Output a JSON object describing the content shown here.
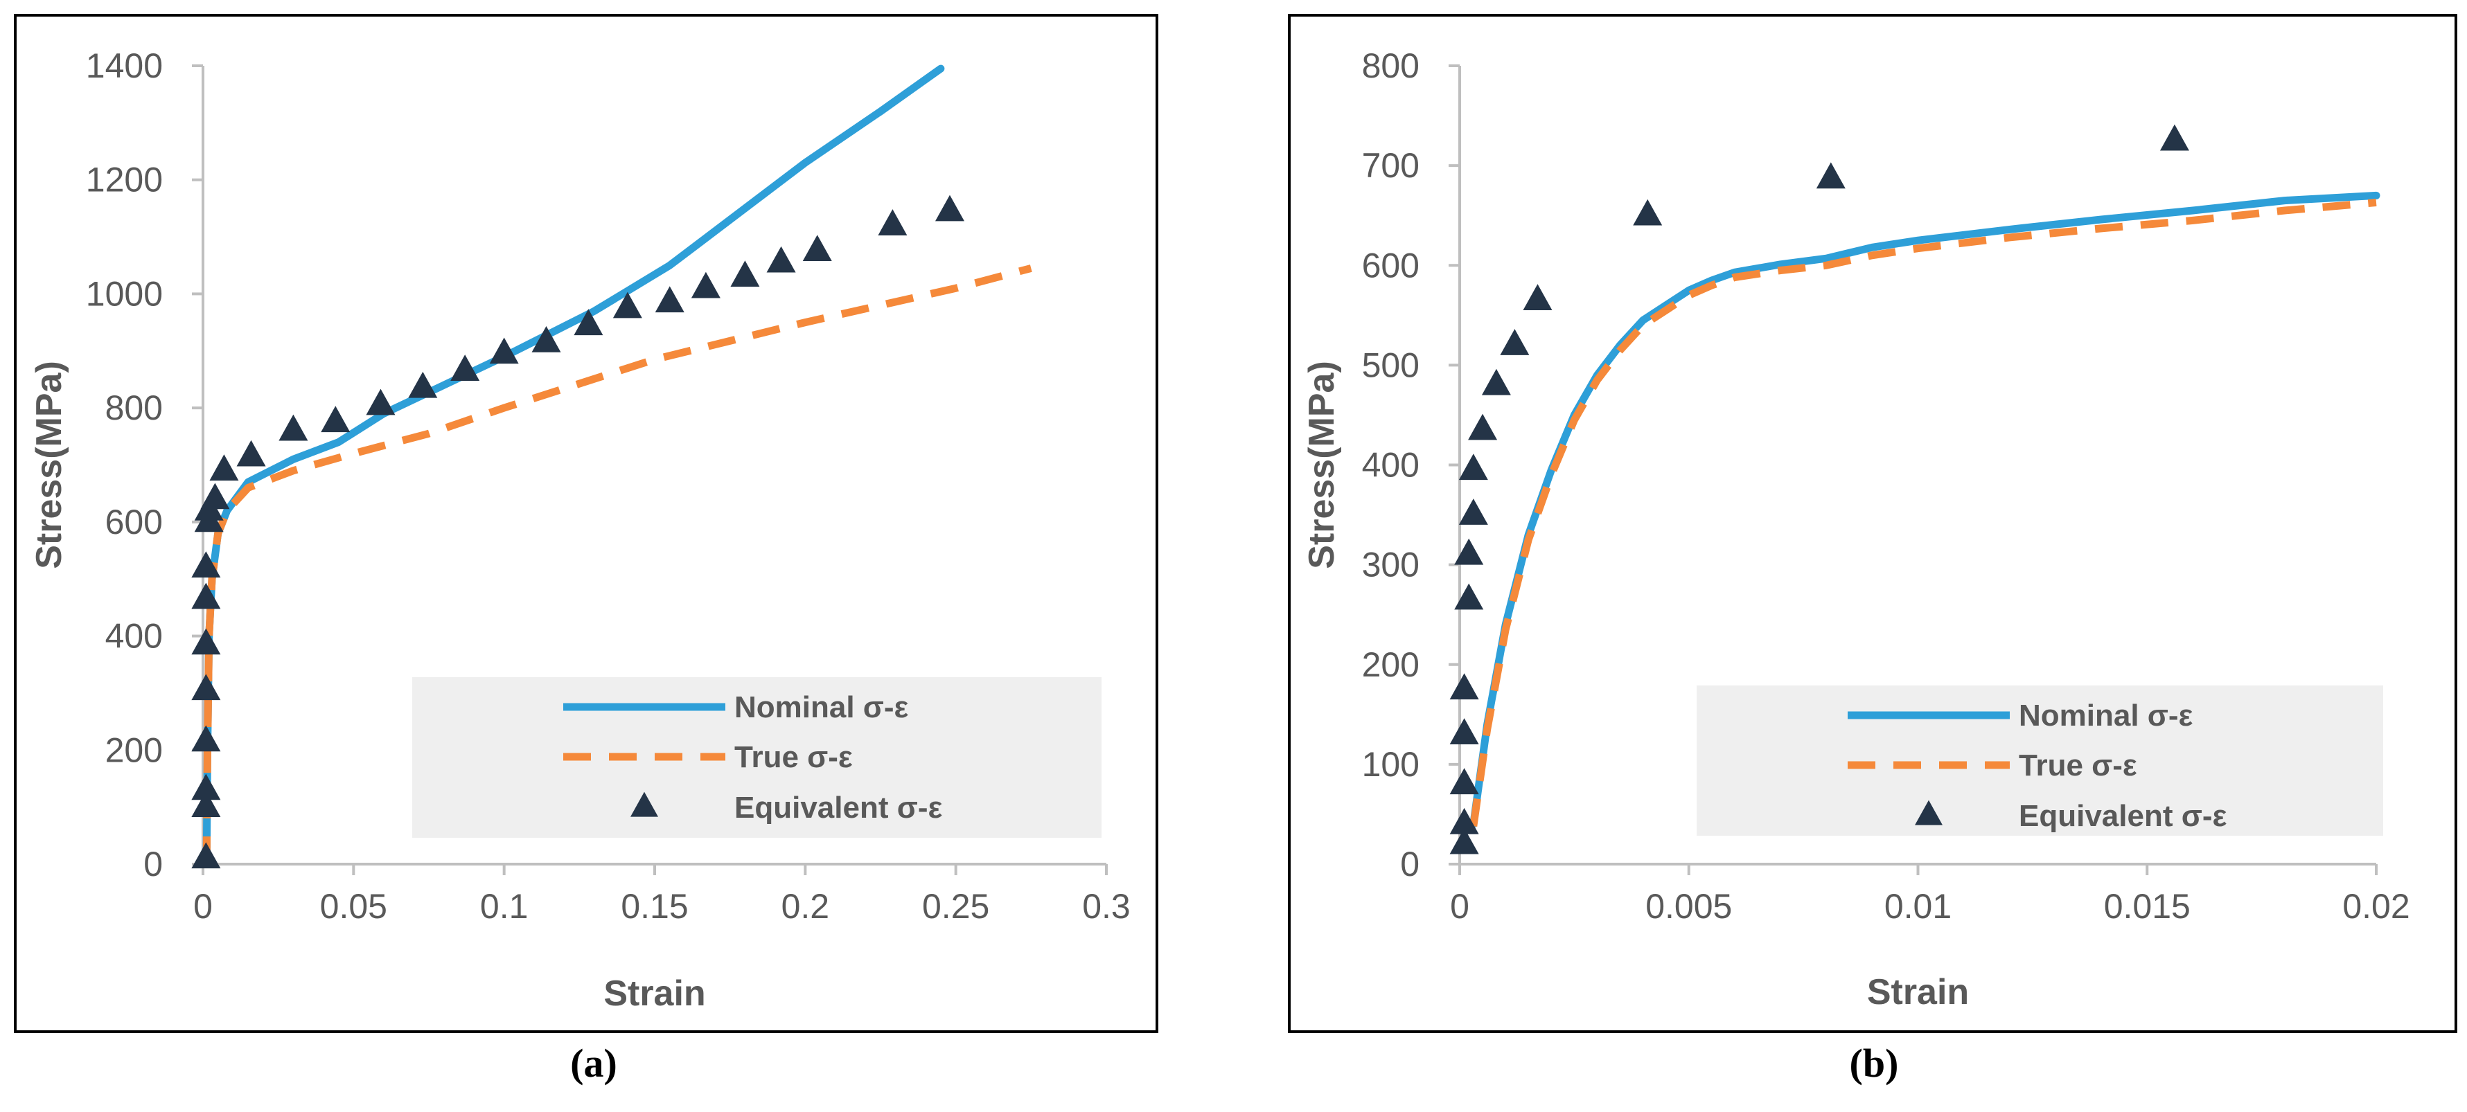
{
  "colors": {
    "nominal": "#2e9fd8",
    "true": "#f5893a",
    "equivalent": "#243447",
    "axis": "#bfbfbf",
    "text": "#595959",
    "legend_bg": "#efefef"
  },
  "chart_data": [
    {
      "type": "line",
      "caption": "(a)",
      "xlabel": "Strain",
      "ylabel": "Stress(MPa)",
      "xlim": [
        0,
        0.3
      ],
      "ylim": [
        0,
        1400
      ],
      "xticks": [
        0,
        0.05,
        0.1,
        0.15,
        0.2,
        0.25,
        0.3
      ],
      "xtick_labels": [
        "0",
        "0.05",
        "0.1",
        "0.15",
        "0.2",
        "0.25",
        "0.3"
      ],
      "yticks": [
        0,
        200,
        400,
        600,
        800,
        1000,
        1200,
        1400
      ],
      "ytick_labels": [
        "0",
        "200",
        "400",
        "600",
        "800",
        "1000",
        "1200",
        "1400"
      ],
      "legend": {
        "position": "bottom-right",
        "entries": [
          "Nominal σ-ε",
          "True σ-ε",
          "Equivalent σ-ε"
        ]
      },
      "series": [
        {
          "name": "Nominal σ-ε",
          "style": "solid",
          "x": [
            0.0012,
            0.0015,
            0.002,
            0.003,
            0.005,
            0.008,
            0.015,
            0.03,
            0.045,
            0.06,
            0.08,
            0.1,
            0.13,
            0.155,
            0.18,
            0.2,
            0.225,
            0.245
          ],
          "y": [
            0,
            200,
            400,
            500,
            580,
            620,
            670,
            710,
            740,
            790,
            840,
            890,
            970,
            1050,
            1150,
            1230,
            1320,
            1395
          ]
        },
        {
          "name": "True σ-ε",
          "style": "dashed",
          "x": [
            0.0012,
            0.0015,
            0.002,
            0.003,
            0.005,
            0.008,
            0.015,
            0.03,
            0.05,
            0.075,
            0.1,
            0.15,
            0.2,
            0.25,
            0.275
          ],
          "y": [
            0,
            200,
            400,
            500,
            580,
            620,
            660,
            690,
            720,
            755,
            800,
            885,
            950,
            1010,
            1045
          ]
        },
        {
          "name": "Equivalent σ-ε",
          "style": "marker",
          "x": [
            0.001,
            0.001,
            0.001,
            0.001,
            0.001,
            0.001,
            0.001,
            0.001,
            0.002,
            0.002,
            0.004,
            0.007,
            0.016,
            0.03,
            0.044,
            0.059,
            0.073,
            0.087,
            0.1,
            0.114,
            0.128,
            0.141,
            0.155,
            0.167,
            0.18,
            0.192,
            0.204,
            0.229,
            0.248
          ],
          "y": [
            10,
            100,
            130,
            215,
            305,
            385,
            465,
            520,
            600,
            620,
            640,
            690,
            715,
            760,
            775,
            805,
            835,
            865,
            895,
            915,
            945,
            975,
            985,
            1010,
            1030,
            1055,
            1075,
            1120,
            1145
          ]
        }
      ]
    },
    {
      "type": "line",
      "caption": "(b)",
      "xlabel": "Strain",
      "ylabel": "Stress(MPa)",
      "xlim": [
        0,
        0.02
      ],
      "ylim": [
        0,
        800
      ],
      "xticks": [
        0,
        0.005,
        0.01,
        0.015,
        0.02
      ],
      "xtick_labels": [
        "0",
        "0.005",
        "0.01",
        "0.015",
        "0.02"
      ],
      "yticks": [
        0,
        100,
        200,
        300,
        400,
        500,
        600,
        700,
        800
      ],
      "ytick_labels": [
        "0",
        "100",
        "200",
        "300",
        "400",
        "500",
        "600",
        "700",
        "800"
      ],
      "legend": {
        "position": "bottom-right",
        "entries": [
          "Nominal σ-ε",
          "True σ-ε",
          "Equivalent σ-ε"
        ]
      },
      "series": [
        {
          "name": "Nominal σ-ε",
          "style": "solid",
          "x": [
            0.0003,
            0.0006,
            0.001,
            0.0015,
            0.002,
            0.0025,
            0.003,
            0.0035,
            0.004,
            0.0045,
            0.005,
            0.0055,
            0.006,
            0.007,
            0.008,
            0.009,
            0.01,
            0.012,
            0.014,
            0.016,
            0.018,
            0.02
          ],
          "y": [
            40,
            140,
            240,
            330,
            395,
            450,
            490,
            520,
            545,
            560,
            575,
            585,
            593,
            601,
            607,
            618,
            625,
            636,
            646,
            655,
            665,
            670
          ]
        },
        {
          "name": "True σ-ε",
          "style": "dashed",
          "x": [
            0.0003,
            0.0006,
            0.001,
            0.0015,
            0.002,
            0.0025,
            0.003,
            0.0035,
            0.004,
            0.0045,
            0.005,
            0.0055,
            0.006,
            0.007,
            0.008,
            0.009,
            0.01,
            0.012,
            0.014,
            0.016,
            0.018,
            0.02
          ],
          "y": [
            38,
            135,
            235,
            325,
            390,
            445,
            485,
            515,
            540,
            555,
            570,
            580,
            588,
            595,
            600,
            610,
            617,
            628,
            637,
            645,
            655,
            663
          ]
        },
        {
          "name": "Equivalent σ-ε",
          "style": "marker",
          "x": [
            0.0001,
            0.0001,
            0.0001,
            0.0001,
            0.0001,
            0.0002,
            0.0002,
            0.0003,
            0.0003,
            0.0005,
            0.0008,
            0.0012,
            0.0017,
            0.0041,
            0.0081,
            0.0156
          ],
          "y": [
            20,
            40,
            80,
            130,
            175,
            265,
            310,
            350,
            395,
            435,
            480,
            520,
            565,
            650,
            687,
            725
          ]
        }
      ]
    }
  ]
}
